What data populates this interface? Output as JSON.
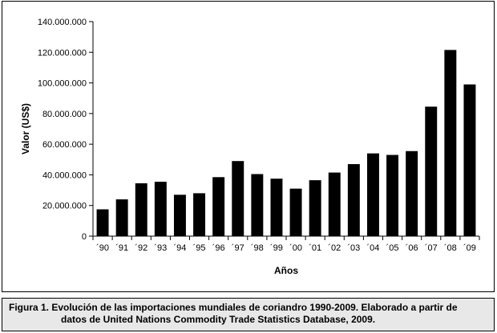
{
  "chart_data": {
    "type": "bar",
    "title": "",
    "xlabel": "Años",
    "ylabel": "Valor (US$)",
    "categories": [
      "´90",
      "´91",
      "´92",
      "´93",
      "´94",
      "´95",
      "´96",
      "´97",
      "´98",
      "´99",
      "´00",
      "´01",
      "´02",
      "´03",
      "´04",
      "´05",
      "´06",
      "´07",
      "´08",
      "´09"
    ],
    "values": [
      17500000,
      24000000,
      34500000,
      35500000,
      27000000,
      28000000,
      38500000,
      49000000,
      40500000,
      37500000,
      31000000,
      36500000,
      41500000,
      47000000,
      54000000,
      53000000,
      55500000,
      84500000,
      121500000,
      99000000
    ],
    "ylim": [
      0,
      140000000
    ],
    "yticks": [
      0,
      20000000,
      40000000,
      60000000,
      80000000,
      100000000,
      120000000,
      140000000
    ],
    "ytick_labels": [
      "0",
      "20.000.000",
      "40.000.000",
      "60.000.000",
      "80.000.000",
      "100.000.000",
      "120.000.000",
      "140.000.000"
    ],
    "bar_color": "#000000",
    "grid": false,
    "legend": "none"
  },
  "caption": {
    "line1": "Figura 1.  Evolución de las importaciones mundiales de coriandro 1990-2009. Elaborado a partir de",
    "line2": "datos de United Nations Commodity Trade Statistics Database, 2009."
  }
}
